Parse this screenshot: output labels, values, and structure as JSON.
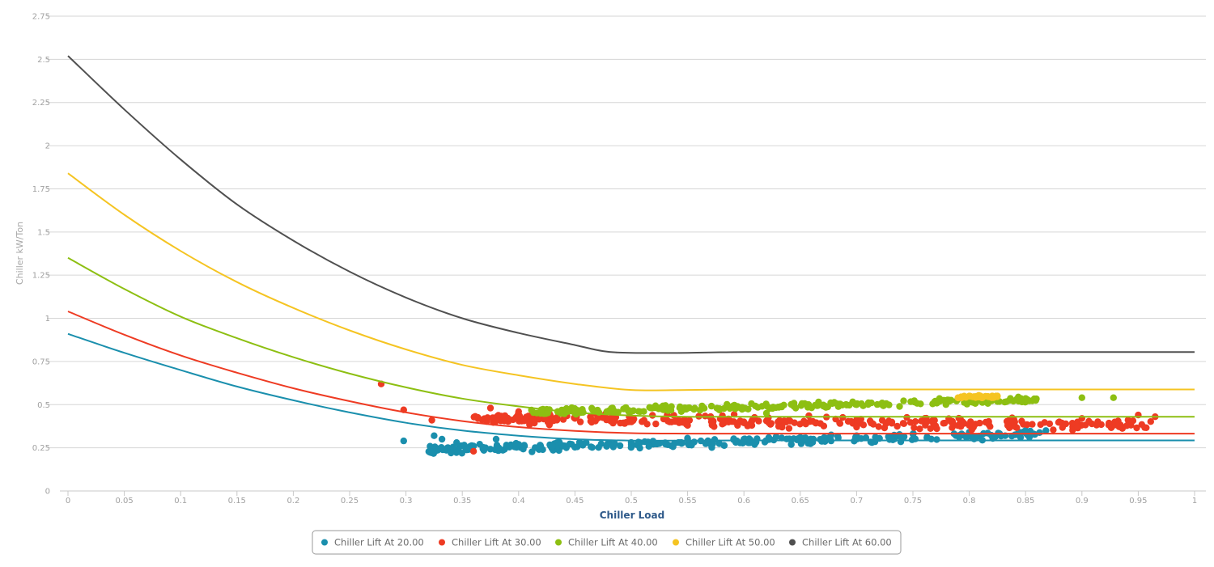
{
  "chart_data": {
    "type": "scatter",
    "xlabel": "Chiller Load",
    "ylabel": "Chiller kW/Ton",
    "xlim": [
      0,
      1
    ],
    "ylim": [
      0,
      2.75
    ],
    "x_ticks": [
      "0",
      "0.05",
      "0.1",
      "0.15",
      "0.2",
      "0.25",
      "0.3",
      "0.35",
      "0.4",
      "0.45",
      "0.5",
      "0.55",
      "0.6",
      "0.65",
      "0.7",
      "0.75",
      "0.8",
      "0.85",
      "0.9",
      "0.95",
      "1"
    ],
    "y_ticks": [
      "0",
      "0.25",
      "0.5",
      "0.75",
      "1",
      "1.25",
      "1.5",
      "1.75",
      "2",
      "2.25",
      "2.5",
      "2.75"
    ],
    "grid": "horizontal",
    "legend_position": "bottom",
    "series": [
      {
        "name": "Chiller Lift At 20.00",
        "color": "#1a8fad",
        "curve": [
          [
            0,
            0.91
          ],
          [
            0.05,
            0.8
          ],
          [
            0.1,
            0.7
          ],
          [
            0.15,
            0.605
          ],
          [
            0.2,
            0.525
          ],
          [
            0.25,
            0.455
          ],
          [
            0.3,
            0.395
          ],
          [
            0.35,
            0.35
          ],
          [
            0.4,
            0.32
          ],
          [
            0.45,
            0.3
          ],
          [
            0.5,
            0.292
          ],
          [
            0.55,
            0.292
          ],
          [
            0.6,
            0.293
          ],
          [
            0.7,
            0.293
          ],
          [
            0.8,
            0.293
          ],
          [
            0.9,
            0.293
          ],
          [
            1.0,
            0.293
          ]
        ],
        "cluster": {
          "x_min": 0.32,
          "x_max": 0.87,
          "y_start": 0.24,
          "y_end": 0.33,
          "spread": 0.035
        },
        "points": [
          [
            0.298,
            0.29
          ],
          [
            0.322,
            0.23
          ],
          [
            0.325,
            0.32
          ],
          [
            0.332,
            0.3
          ],
          [
            0.334,
            0.24
          ],
          [
            0.34,
            0.22
          ],
          [
            0.345,
            0.28
          ],
          [
            0.36,
            0.26
          ],
          [
            0.38,
            0.3
          ],
          [
            0.4,
            0.27
          ],
          [
            0.43,
            0.26
          ],
          [
            0.46,
            0.28
          ],
          [
            0.5,
            0.27
          ],
          [
            0.55,
            0.3
          ],
          [
            0.6,
            0.3
          ],
          [
            0.65,
            0.31
          ],
          [
            0.7,
            0.32
          ],
          [
            0.75,
            0.33
          ],
          [
            0.8,
            0.34
          ],
          [
            0.85,
            0.35
          ],
          [
            0.868,
            0.35
          ]
        ]
      },
      {
        "name": "Chiller Lift At 30.00",
        "color": "#ee3b23",
        "curve": [
          [
            0,
            1.04
          ],
          [
            0.05,
            0.905
          ],
          [
            0.1,
            0.785
          ],
          [
            0.15,
            0.685
          ],
          [
            0.2,
            0.595
          ],
          [
            0.25,
            0.52
          ],
          [
            0.3,
            0.455
          ],
          [
            0.35,
            0.405
          ],
          [
            0.4,
            0.37
          ],
          [
            0.45,
            0.348
          ],
          [
            0.5,
            0.335
          ],
          [
            0.55,
            0.332
          ],
          [
            0.6,
            0.332
          ],
          [
            0.7,
            0.332
          ],
          [
            0.8,
            0.332
          ],
          [
            0.9,
            0.332
          ],
          [
            1.0,
            0.332
          ]
        ],
        "cluster": {
          "x_min": 0.36,
          "x_max": 0.965,
          "y_start": 0.42,
          "y_end": 0.38,
          "spread": 0.045
        },
        "points": [
          [
            0.278,
            0.62
          ],
          [
            0.298,
            0.47
          ],
          [
            0.323,
            0.41
          ],
          [
            0.36,
            0.23
          ],
          [
            0.375,
            0.48
          ],
          [
            0.4,
            0.46
          ],
          [
            0.45,
            0.42
          ],
          [
            0.5,
            0.4
          ],
          [
            0.55,
            0.38
          ],
          [
            0.6,
            0.4
          ],
          [
            0.7,
            0.37
          ],
          [
            0.8,
            0.38
          ],
          [
            0.9,
            0.42
          ],
          [
            0.95,
            0.44
          ],
          [
            0.965,
            0.43
          ]
        ]
      },
      {
        "name": "Chiller Lift At 40.00",
        "color": "#8dbf12",
        "curve": [
          [
            0,
            1.35
          ],
          [
            0.05,
            1.17
          ],
          [
            0.1,
            1.01
          ],
          [
            0.15,
            0.885
          ],
          [
            0.2,
            0.775
          ],
          [
            0.25,
            0.68
          ],
          [
            0.3,
            0.6
          ],
          [
            0.35,
            0.535
          ],
          [
            0.4,
            0.49
          ],
          [
            0.45,
            0.455
          ],
          [
            0.5,
            0.437
          ],
          [
            0.55,
            0.43
          ],
          [
            0.6,
            0.43
          ],
          [
            0.7,
            0.43
          ],
          [
            0.8,
            0.43
          ],
          [
            0.9,
            0.43
          ],
          [
            1.0,
            0.43
          ]
        ],
        "cluster": {
          "x_min": 0.41,
          "x_max": 0.87,
          "y_start": 0.455,
          "y_end": 0.53,
          "spread": 0.028
        },
        "points": [
          [
            0.42,
            0.47
          ],
          [
            0.45,
            0.45
          ],
          [
            0.5,
            0.46
          ],
          [
            0.55,
            0.48
          ],
          [
            0.6,
            0.48
          ],
          [
            0.62,
            0.45
          ],
          [
            0.7,
            0.5
          ],
          [
            0.8,
            0.52
          ],
          [
            0.85,
            0.53
          ],
          [
            0.9,
            0.54
          ],
          [
            0.928,
            0.54
          ]
        ]
      },
      {
        "name": "Chiller Lift At 50.00",
        "color": "#f5c422",
        "curve": [
          [
            0,
            1.84
          ],
          [
            0.05,
            1.6
          ],
          [
            0.1,
            1.39
          ],
          [
            0.15,
            1.21
          ],
          [
            0.2,
            1.06
          ],
          [
            0.25,
            0.93
          ],
          [
            0.3,
            0.82
          ],
          [
            0.35,
            0.73
          ],
          [
            0.4,
            0.67
          ],
          [
            0.45,
            0.62
          ],
          [
            0.5,
            0.585
          ],
          [
            0.55,
            0.585
          ],
          [
            0.6,
            0.588
          ],
          [
            0.7,
            0.588
          ],
          [
            0.8,
            0.588
          ],
          [
            0.9,
            0.588
          ],
          [
            1.0,
            0.588
          ]
        ],
        "cluster": {
          "x_min": 0.79,
          "x_max": 0.825,
          "y_start": 0.545,
          "y_end": 0.545,
          "spread": 0.01
        },
        "points": [
          [
            0.79,
            0.54
          ],
          [
            0.8,
            0.55
          ],
          [
            0.81,
            0.55
          ],
          [
            0.82,
            0.54
          ],
          [
            0.825,
            0.55
          ]
        ]
      },
      {
        "name": "Chiller Lift At 60.00",
        "color": "#505050",
        "curve": [
          [
            0,
            2.52
          ],
          [
            0.05,
            2.21
          ],
          [
            0.1,
            1.92
          ],
          [
            0.15,
            1.66
          ],
          [
            0.2,
            1.45
          ],
          [
            0.25,
            1.27
          ],
          [
            0.3,
            1.12
          ],
          [
            0.35,
            1.0
          ],
          [
            0.4,
            0.915
          ],
          [
            0.45,
            0.845
          ],
          [
            0.475,
            0.81
          ],
          [
            0.5,
            0.8
          ],
          [
            0.55,
            0.8
          ],
          [
            0.6,
            0.805
          ],
          [
            0.7,
            0.805
          ],
          [
            0.8,
            0.805
          ],
          [
            0.9,
            0.805
          ],
          [
            1.0,
            0.805
          ]
        ],
        "cluster": null,
        "points": []
      }
    ]
  }
}
